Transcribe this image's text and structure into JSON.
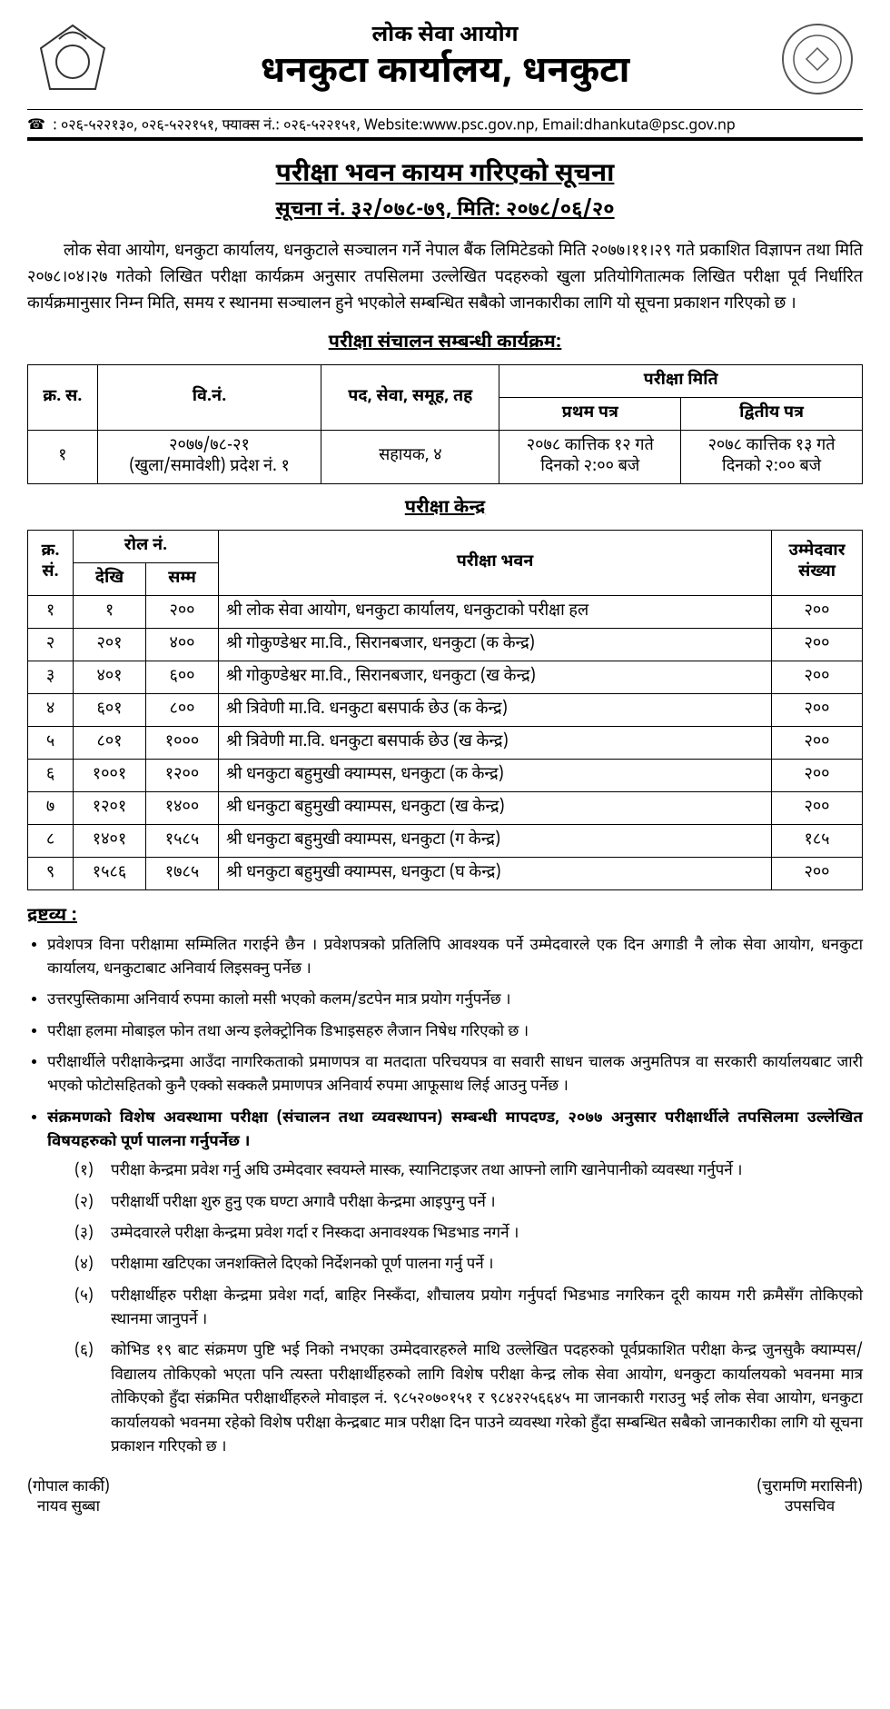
{
  "header": {
    "org_top": "लोक सेवा आयोग",
    "org_main": "धनकुटा कार्यालय, धनकुटा",
    "contact": ": ०२६-५२२१३०,  ०२६-५२२१५१,   फ्याक्स नं.: ०२६-५२२१५१,   Website:www.psc.gov.np,   Email:dhankuta@psc.gov.np"
  },
  "notice_title": "परीक्षा भवन कायम गरिएको सूचना",
  "notice_sub": "सूचना नं. ३२/०७८-७९, मिति: २०७८/०६/२०",
  "body": "लोक सेवा आयोग, धनकुटा कार्यालय, धनकुटाले सञ्चालन गर्ने नेपाल बैंक लिमिटेडको मिति २०७७।११।२९ गते प्रकाशित विज्ञापन तथा मिति २०७८।०४।२७ गतेको लिखित परीक्षा कार्यक्रम अनुसार तपसिलमा उल्लेखित पदहरुको खुला प्रतियोगितात्मक लिखित परीक्षा पूर्व निर्धारित कार्यक्रमानुसार निम्न मिति, समय र स्थानमा सञ्चालन हुने भएकोले सम्बन्धित सबैको जानकारीका लागि यो सूचना प्रकाशन गरिएको छ ।",
  "prog_title": "परीक्षा संचालन सम्बन्धी कार्यक्रम:",
  "prog_headers": {
    "sn": "क्र. स.",
    "ad": "वि.नं.",
    "post": "पद, सेवा, समूह, तह",
    "date": "परीक्षा मिति",
    "p1": "प्रथम पत्र",
    "p2": "द्वितीय पत्र"
  },
  "prog_row": {
    "sn": "१",
    "ad_l1": "२०७७/७८-२१",
    "ad_l2": "(खुला/समावेशी) प्रदेश नं. १",
    "post": "सहायक, ४",
    "p1_l1": "२०७८ कात्तिक १२ गते",
    "p1_l2": "दिनको २:०० बजे",
    "p2_l1": "२०७८ कात्तिक १३ गते",
    "p2_l2": "दिनको २:०० बजे"
  },
  "center_title": "परीक्षा केन्द्र",
  "center_headers": {
    "sn": "क्र. सं.",
    "roll": "रोल नं.",
    "from": "देखि",
    "to": "सम्म",
    "venue": "परीक्षा भवन",
    "count": "उम्मेदवार संख्या"
  },
  "centers": [
    {
      "sn": "१",
      "from": "१",
      "to": "२००",
      "venue": "श्री लोक सेवा आयोग, धनकुटा कार्यालय, धनकुटाको परीक्षा हल",
      "count": "२००"
    },
    {
      "sn": "२",
      "from": "२०१",
      "to": "४००",
      "venue": "श्री गोकुण्डेश्वर मा.वि., सिरानबजार, धनकुटा (क केन्द्र)",
      "count": "२००"
    },
    {
      "sn": "३",
      "from": "४०१",
      "to": "६००",
      "venue": "श्री गोकुण्डेश्वर मा.वि., सिरानबजार, धनकुटा (ख केन्द्र)",
      "count": "२००"
    },
    {
      "sn": "४",
      "from": "६०१",
      "to": "८००",
      "venue": "श्री त्रिवेणी मा.वि. धनकुटा  बसपार्क छेउ  (क केन्द्र)",
      "count": "२००"
    },
    {
      "sn": "५",
      "from": "८०१",
      "to": "१०००",
      "venue": "श्री त्रिवेणी मा.वि. धनकुटा  बसपार्क छेउ  (ख केन्द्र)",
      "count": "२००"
    },
    {
      "sn": "६",
      "from": "१००१",
      "to": "१२००",
      "venue": "श्री धनकुटा बहुमुखी क्याम्पस, धनकुटा (क केन्द्र)",
      "count": "२००"
    },
    {
      "sn": "७",
      "from": "१२०१",
      "to": "१४००",
      "venue": "श्री धनकुटा बहुमुखी क्याम्पस, धनकुटा (ख केन्द्र)",
      "count": "२००"
    },
    {
      "sn": "८",
      "from": "१४०१",
      "to": "१५८५",
      "venue": "श्री धनकुटा बहुमुखी क्याम्पस, धनकुटा (ग केन्द्र)",
      "count": "१८५"
    },
    {
      "sn": "९",
      "from": "१५८६",
      "to": "१७८५",
      "venue": "श्री धनकुटा बहुमुखी क्याम्पस, धनकुटा (घ केन्द्र)",
      "count": "२००"
    }
  ],
  "note_head": "द्रष्टव्य :",
  "notes": [
    "प्रवेशपत्र विना परीक्षामा सम्मिलित गराईने छैन । प्रवेशपत्रको प्रतिलिपि आवश्यक पर्ने उम्मेदवारले एक दिन अगाडी नै लोक सेवा आयोग, धनकुटा कार्यालय, धनकुटाबाट अनिवार्य लिइसक्नु पर्नेछ ।",
    "उत्तरपुस्तिकामा अनिवार्य रुपमा कालो मसी भएको कलम/डटपेन मात्र प्रयोग गर्नुपर्नेछ ।",
    "परीक्षा हलमा मोबाइल फोन तथा अन्य इलेक्ट्रोनिक डिभाइसहरु लैजान निषेध गरिएको छ ।",
    "परीक्षार्थीले परीक्षाकेन्द्रमा आउँदा नागरिकताको प्रमाणपत्र वा मतदाता परिचयपत्र वा सवारी साधन चालक अनुमतिपत्र वा सरकारी कार्यालयबाट जारी भएको फोटोसहितको कुनै एक्को सक्कलै प्रमाणपत्र अनिवार्य रुपमा आफूसाथ लिई आउनु पर्नेछ ।"
  ],
  "bold_note": "संक्रमणको विशेष अवस्थामा परीक्षा (संचालन तथा व्यवस्थापन) सम्बन्धी मापदण्ड, २०७७ अनुसार परीक्षार्थीले तपसिलमा उल्लेखित विषयहरुको पूर्ण पालना गर्नुपर्नेछ ।",
  "sublist": [
    {
      "n": "(१)",
      "t": "परीक्षा केन्द्रमा प्रवेश गर्नु अघि उम्मेदवार स्वयम्ले मास्क, स्यानिटाइजर तथा आफ्नो लागि खानेपानीको व्यवस्था गर्नुपर्ने ।"
    },
    {
      "n": "(२)",
      "t": "परीक्षार्थी परीक्षा शुरु हुनु एक घण्टा अगावै परीक्षा केन्द्रमा आइपुग्नु पर्ने ।"
    },
    {
      "n": "(३)",
      "t": "उम्मेदवारले परीक्षा केन्द्रमा प्रवेश गर्दा र निस्कदा अनावश्यक भिडभाड नगर्ने ।"
    },
    {
      "n": "(४)",
      "t": "परीक्षामा खटिएका जनशक्तिले दिएको निर्देशनको पूर्ण पालना गर्नु पर्ने ।"
    },
    {
      "n": "(५)",
      "t": "परीक्षार्थीहरु परीक्षा केन्द्रमा प्रवेश गर्दा, बाहिर निस्कँदा, शौचालय प्रयोग गर्नुपर्दा भिडभाड नगरिकन दूरी कायम गरी क्रमैसँग तोकिएको स्थानमा जानुपर्ने ।"
    },
    {
      "n": "(६)",
      "t": "कोभिड १९ बाट संक्रमण पुष्टि भई निको नभएका उम्मेदवारहरुले माथि उल्लेखित पदहरुको पूर्वप्रकाशित परीक्षा केन्द्र जुनसुकै क्याम्पस/विद्यालय तोकिएको भएता पनि त्यस्ता परीक्षार्थीहरुको लागि विशेष परीक्षा केन्द्र लोक सेवा आयोग, धनकुटा कार्यालयको भवनमा मात्र तोकिएको हुँदा संक्रमित परीक्षार्थीहरुले मोवाइल नं. ९८५२०७०१५१ र ९८४२२५६६४५ मा जानकारी गराउनु भई लोक सेवा आयोग, धनकुटा कार्यालयको भवनमा रहेको विशेष परीक्षा केन्द्रबाट मात्र परीक्षा दिन पाउने व्यवस्था गरेको हुँदा सम्बन्धित सबैको जानकारीका लागि यो सूचना प्रकाशन गरिएको छ ।"
    }
  ],
  "sign_left": {
    "name": "(गोपाल कार्की)",
    "post": "नायव सुब्बा"
  },
  "sign_right": {
    "name": "(चुरामणि मरासिनी)",
    "post": "उपसचिव"
  }
}
